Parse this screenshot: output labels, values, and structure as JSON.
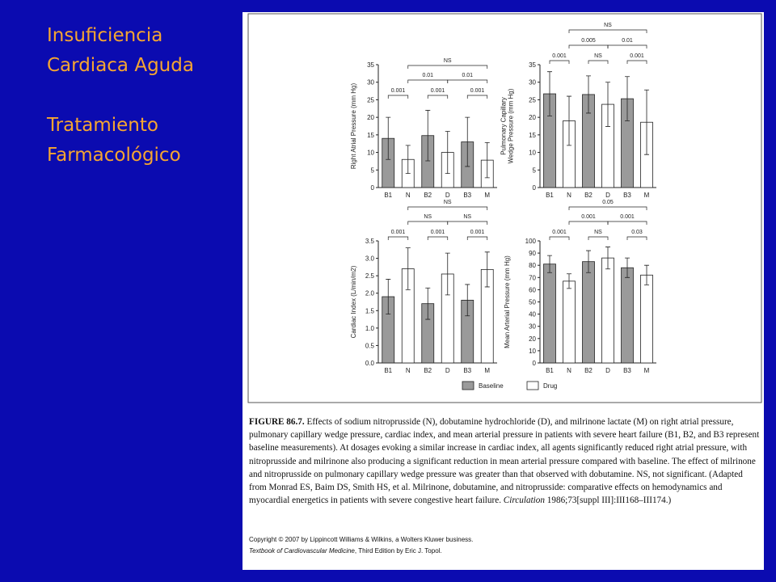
{
  "slide": {
    "title": [
      "Insuficiencia",
      "Cardiaca Aguda",
      "Tratamiento",
      "Farmacológico"
    ]
  },
  "legend": [
    {
      "name": "Baseline",
      "color": "#9a9a9a"
    },
    {
      "name": "Drug",
      "color": "#ffffff"
    }
  ],
  "caption": {
    "label": "FIGURE 86.7.",
    "body": " Effects of sodium nitroprusside (N), dobutamine hydrochloride (D), and milrinone lactate (M) on right atrial pressure, pulmonary capillary wedge pressure, cardiac index, and mean arterial pressure in patients with severe heart failure (B1, B2, and B3 represent baseline measurements). At dosages evoking a similar increase in cardiac index, all agents significantly reduced right atrial pressure, with nitroprusside and milrinone also producing a significant reduction in mean arterial pressure compared with baseline. The effect of milrinone and nitroprusside on pulmonary capillary wedge pressure was greater than that observed with dobutamine. NS, not significant. (Adapted from Monrad ES, Baim DS, Smith HS, et al. Milrinone, dobutamine, and nitroprusside: comparative effects on hemodynamics and myocardial energetics in patients with severe congestive heart failure. ",
    "journal": "Circulation",
    "ref": " 1986;73[suppl III]:III168–III174.)"
  },
  "copyright": {
    "line1": "Copyright © 2007 by Lippincott Williams & Wilkins, a Wolters Kluwer business.",
    "book": "Textbook of Cardiovascular Medicine",
    "edition": ", Third Edition by Eric J. Topol."
  },
  "chart_data": [
    {
      "type": "bar",
      "ylabel": "Right Atrial Pressure (mm Hg)",
      "categories": [
        "B1",
        "N",
        "B2",
        "D",
        "B3",
        "M"
      ],
      "values": [
        14,
        8,
        14.8,
        10,
        13,
        7.8
      ],
      "errors": [
        6,
        4,
        7.2,
        6,
        7,
        5
      ],
      "colors": [
        "#9a9a9a",
        "#ffffff",
        "#9a9a9a",
        "#ffffff",
        "#9a9a9a",
        "#ffffff"
      ],
      "ylim": [
        0,
        35
      ],
      "yticks": [
        0,
        5,
        10,
        15,
        20,
        25,
        30,
        35
      ],
      "annotations": [
        {
          "text": "0.001",
          "between": [
            "B1",
            "N"
          ]
        },
        {
          "text": "0.001",
          "between": [
            "B2",
            "D"
          ]
        },
        {
          "text": "0.001",
          "between": [
            "B3",
            "M"
          ]
        },
        {
          "text": "0.01",
          "between": [
            "N",
            "D"
          ]
        },
        {
          "text": "0.01",
          "between": [
            "D",
            "M"
          ]
        },
        {
          "text": "NS",
          "between": [
            "N",
            "M"
          ]
        }
      ]
    },
    {
      "type": "bar",
      "ylabel": [
        "Pulmonary Capillary",
        "Wedge Pressure (mm Hg)"
      ],
      "categories": [
        "B1",
        "N",
        "B2",
        "D",
        "B3",
        "M"
      ],
      "values": [
        26.7,
        19,
        26.5,
        23.7,
        25.3,
        18.6
      ],
      "errors": [
        6.3,
        7,
        5.3,
        6.3,
        6.3,
        9.2
      ],
      "colors": [
        "#9a9a9a",
        "#ffffff",
        "#9a9a9a",
        "#ffffff",
        "#9a9a9a",
        "#ffffff"
      ],
      "ylim": [
        0,
        35
      ],
      "yticks": [
        0,
        5,
        10,
        15,
        20,
        25,
        30,
        35
      ],
      "annotations": [
        {
          "text": "0.001",
          "between": [
            "B1",
            "N"
          ]
        },
        {
          "text": "NS",
          "between": [
            "B2",
            "D"
          ]
        },
        {
          "text": "0.001",
          "between": [
            "B3",
            "M"
          ]
        },
        {
          "text": "0.005",
          "between": [
            "N",
            "D"
          ]
        },
        {
          "text": "0.01",
          "between": [
            "D",
            "M"
          ]
        },
        {
          "text": "NS",
          "between": [
            "N",
            "M"
          ]
        }
      ]
    },
    {
      "type": "bar",
      "ylabel": "Cardiac Index (L/min/m2)",
      "categories": [
        "B1",
        "N",
        "B2",
        "D",
        "B3",
        "M"
      ],
      "values": [
        1.9,
        2.7,
        1.7,
        2.55,
        1.8,
        2.68
      ],
      "errors": [
        0.5,
        0.6,
        0.45,
        0.6,
        0.45,
        0.5
      ],
      "colors": [
        "#9a9a9a",
        "#ffffff",
        "#9a9a9a",
        "#ffffff",
        "#9a9a9a",
        "#ffffff"
      ],
      "ylim": [
        0,
        3.5
      ],
      "yticks": [
        {
          "value": 0,
          "label": "0.0"
        },
        0.5,
        {
          "value": 1,
          "label": "1.0"
        },
        1.5,
        {
          "value": 2,
          "label": "2.0"
        },
        2.5,
        {
          "value": 3,
          "label": "3.0"
        },
        3.5
      ],
      "annotations": [
        {
          "text": "0.001",
          "between": [
            "B1",
            "N"
          ]
        },
        {
          "text": "0.001",
          "between": [
            "B2",
            "D"
          ]
        },
        {
          "text": "0.001",
          "between": [
            "B3",
            "M"
          ]
        },
        {
          "text": "NS",
          "between": [
            "N",
            "D"
          ]
        },
        {
          "text": "NS",
          "between": [
            "D",
            "M"
          ]
        },
        {
          "text": "NS",
          "between": [
            "N",
            "M"
          ]
        }
      ]
    },
    {
      "type": "bar",
      "ylabel": "Mean Arterial Pressure (mm Hg)",
      "categories": [
        "B1",
        "N",
        "B2",
        "D",
        "B3",
        "M"
      ],
      "values": [
        81,
        67,
        83,
        86,
        78,
        72
      ],
      "errors": [
        7,
        6,
        9,
        9,
        8,
        8
      ],
      "colors": [
        "#9a9a9a",
        "#ffffff",
        "#9a9a9a",
        "#ffffff",
        "#9a9a9a",
        "#ffffff"
      ],
      "ylim": [
        0,
        100
      ],
      "yticks": [
        0,
        10,
        20,
        30,
        40,
        50,
        60,
        70,
        80,
        90,
        100
      ],
      "annotations": [
        {
          "text": "0.001",
          "between": [
            "B1",
            "N"
          ]
        },
        {
          "text": "NS",
          "between": [
            "B2",
            "D"
          ]
        },
        {
          "text": "0.03",
          "between": [
            "B3",
            "M"
          ]
        },
        {
          "text": "0.001",
          "between": [
            "N",
            "D"
          ]
        },
        {
          "text": "0.001",
          "between": [
            "D",
            "M"
          ]
        },
        {
          "text": "0.05",
          "between": [
            "N",
            "M"
          ]
        }
      ]
    }
  ]
}
